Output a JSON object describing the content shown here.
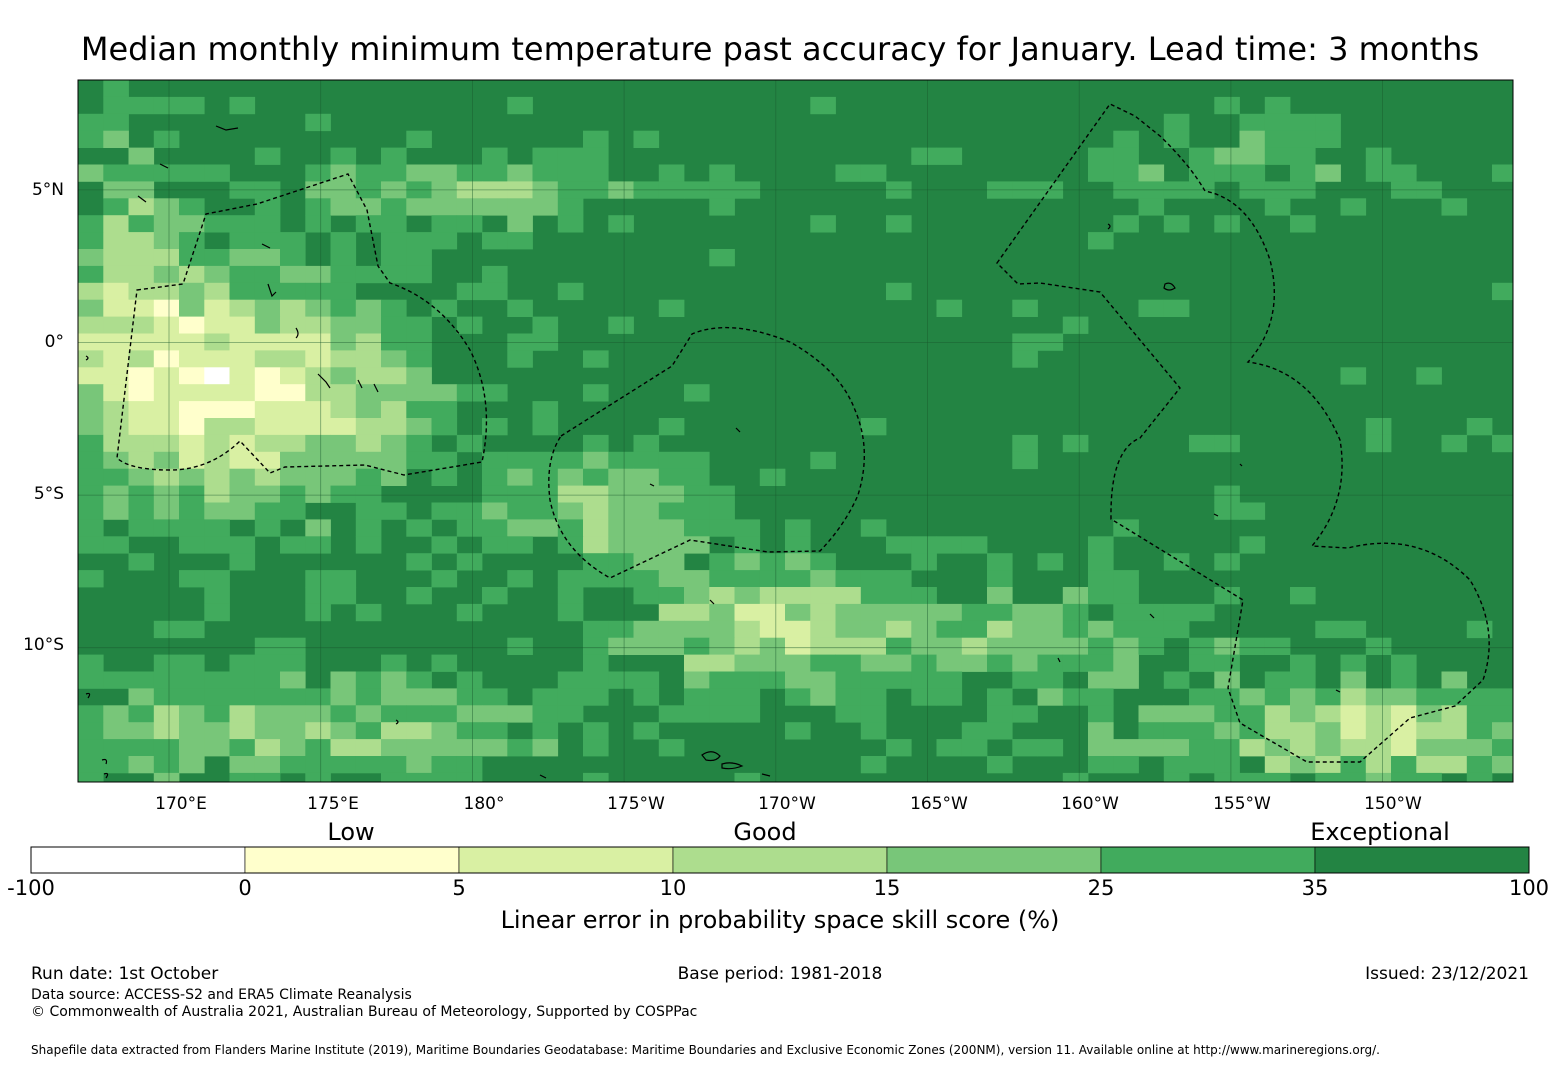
{
  "title": "Median monthly minimum temperature past accuracy for January. Lead time: 3 months",
  "map": {
    "lon_range_deg_east": [
      167,
      214.3
    ],
    "lat_range": [
      -14.4,
      8.6
    ],
    "lat_labels": [
      "5°N",
      "0°",
      "5°S",
      "10°S"
    ],
    "lon_labels": [
      "170°E",
      "175°E",
      "180°",
      "175°W",
      "170°W",
      "165°W",
      "160°W",
      "155°W",
      "150°W"
    ],
    "gridlines": true,
    "dominant_category": "35 to 100 (Exceptional)"
  },
  "colorbar": {
    "category_labels": [
      "Low",
      "Good",
      "Exceptional"
    ],
    "bounds": [
      "-100",
      "0",
      "5",
      "10",
      "15",
      "25",
      "35",
      "100"
    ],
    "colors": [
      "#ffffff",
      "#ffffcc",
      "#d9f0a3",
      "#addd8e",
      "#78c679",
      "#41ab5d",
      "#238443"
    ],
    "label": "Linear error in probability space skill score (%)"
  },
  "footer": {
    "run_date": "Run date: 1st October",
    "base_period": "Base period: 1981-2018",
    "issued": "Issued: 23/12/2021",
    "data_source": "Data source: ACCESS-S2 and ERA5 Climate Reanalysis",
    "copyright": "© Commonwealth of Australia 2021, Australian Bureau of Meteorology, Supported by COSPPac",
    "shapefile": "Shapefile data extracted from Flanders Marine Institute (2019), Maritime Boundaries Geodatabase: Maritime Boundaries and Exclusive Economic Zones (200NM), version 11. Available online at http://www.marineregions.org/."
  }
}
